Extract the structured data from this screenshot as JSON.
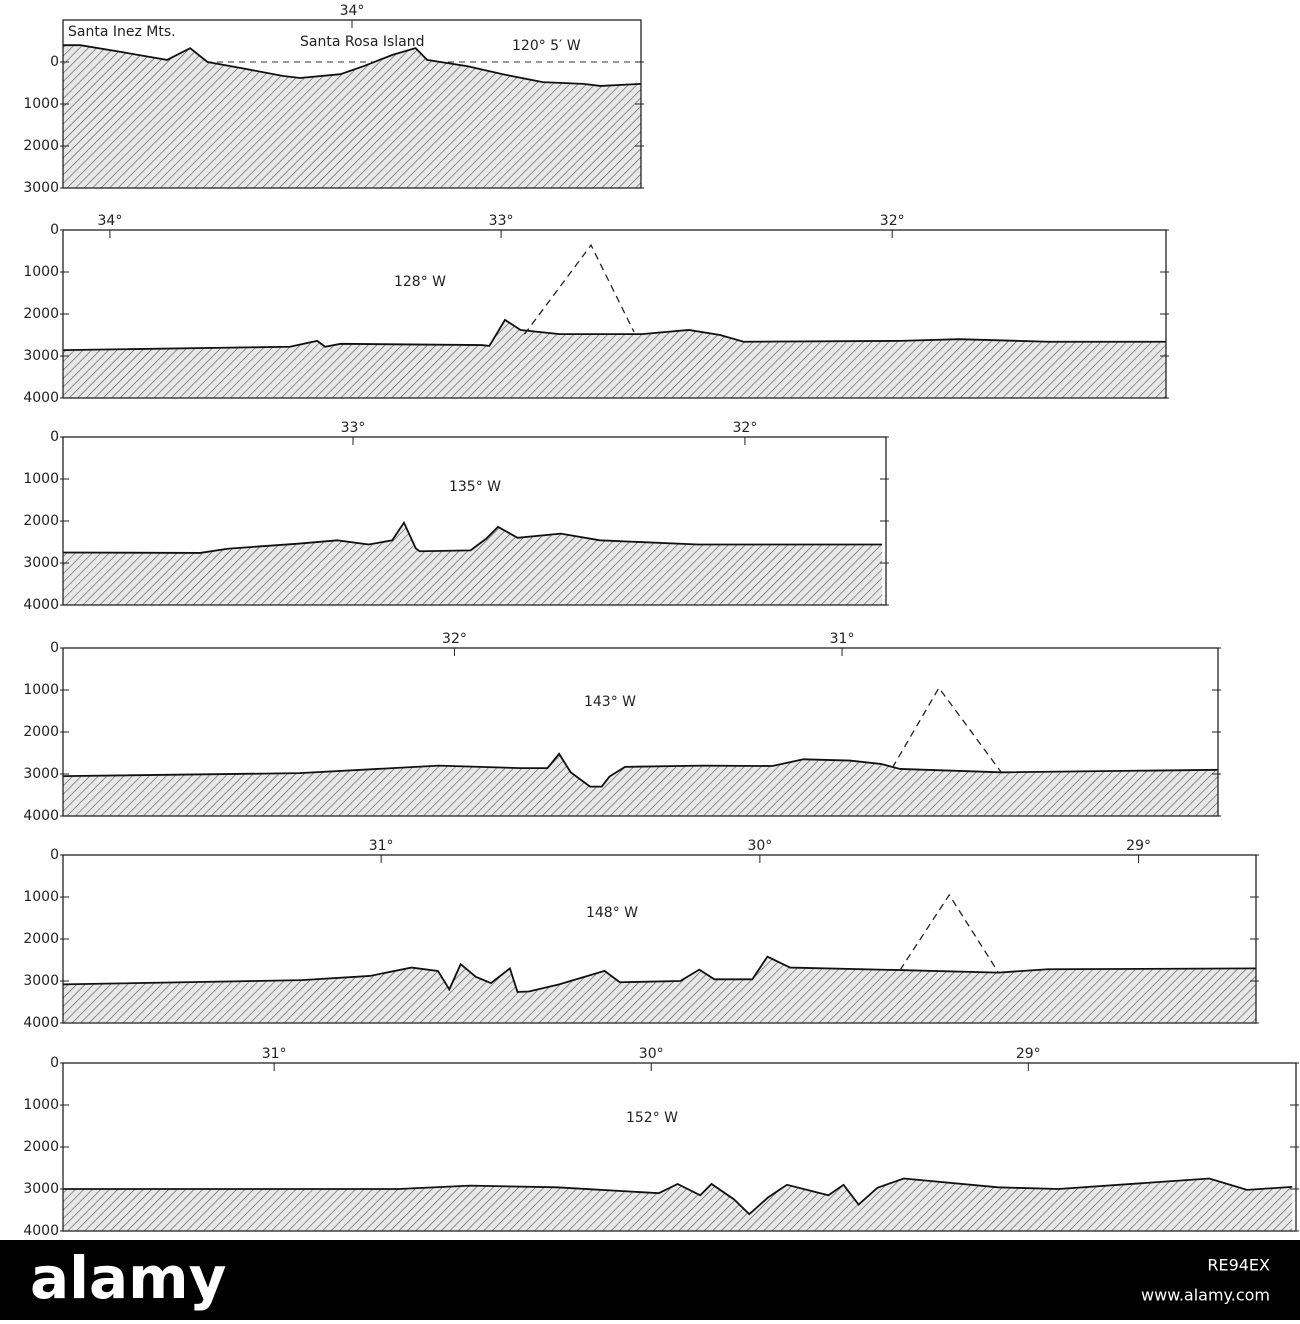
{
  "chart_data": [
    {
      "type": "area",
      "y_inverted": true,
      "zero_line": true,
      "annotations": [
        "Santa Inez Mts.",
        "Santa Rosa Island",
        "120° 5′ W"
      ],
      "xlim": [
        34.5,
        33.5
      ],
      "xticks": [
        {
          "value": 34,
          "label": "34°"
        }
      ],
      "ylim": [
        -1000,
        3000
      ],
      "yticks": [
        0,
        1000,
        2000,
        3000
      ],
      "x": [
        34.5,
        34.47,
        34.4,
        34.32,
        34.28,
        34.25,
        34.19,
        34.12,
        34.09,
        34.02,
        33.98,
        33.93,
        33.89,
        33.87,
        33.8,
        33.74,
        33.67,
        33.6,
        33.57,
        33.5
      ],
      "values": [
        -400,
        -400,
        -240,
        -50,
        -330,
        0,
        150,
        330,
        380,
        290,
        100,
        -170,
        -330,
        -50,
        100,
        290,
        480,
        520,
        570,
        520
      ]
    },
    {
      "type": "area",
      "y_inverted": true,
      "annotations": [
        "128° W"
      ],
      "xlim": [
        34.12,
        31.3
      ],
      "xticks": [
        {
          "value": 34,
          "label": "34°"
        },
        {
          "value": 33,
          "label": "33°"
        },
        {
          "value": 32,
          "label": "32°"
        }
      ],
      "ylim": [
        0,
        4000
      ],
      "yticks": [
        0,
        1000,
        2000,
        3000,
        4000
      ],
      "x": [
        34.12,
        33.54,
        33.47,
        33.45,
        33.41,
        33.05,
        33.03,
        32.99,
        32.95,
        32.85,
        32.64,
        32.52,
        32.44,
        32.38,
        31.98,
        31.83,
        31.6,
        31.3
      ],
      "values": [
        2860,
        2780,
        2640,
        2780,
        2710,
        2740,
        2760,
        2140,
        2380,
        2480,
        2480,
        2380,
        2500,
        2660,
        2640,
        2600,
        2660,
        2660
      ],
      "dashed": {
        "x": [
          32.94,
          32.77,
          32.66
        ],
        "values": [
          2480,
          360,
          2430
        ]
      }
    },
    {
      "type": "area",
      "y_inverted": true,
      "annotations": [
        "135° W"
      ],
      "xlim": [
        33.74,
        31.64
      ],
      "xticks": [
        {
          "value": 33,
          "label": "33°"
        },
        {
          "value": 32,
          "label": "32°"
        }
      ],
      "ylim": [
        0,
        4000
      ],
      "yticks": [
        0,
        1000,
        2000,
        3000,
        4000
      ],
      "x": [
        33.74,
        33.39,
        33.32,
        33.14,
        33.04,
        32.96,
        32.9,
        32.87,
        32.84,
        32.83,
        32.7,
        32.66,
        32.63,
        32.58,
        32.47,
        32.37,
        32.12,
        31.65
      ],
      "values": [
        2750,
        2760,
        2660,
        2540,
        2460,
        2560,
        2460,
        2040,
        2650,
        2720,
        2700,
        2420,
        2140,
        2400,
        2300,
        2460,
        2560,
        2560
      ]
    },
    {
      "type": "area",
      "y_inverted": true,
      "annotations": [
        "143° W"
      ],
      "xlim": [
        33.01,
        30.03
      ],
      "xticks": [
        {
          "value": 32,
          "label": "32°"
        },
        {
          "value": 31,
          "label": "31°"
        }
      ],
      "ylim": [
        0,
        4000
      ],
      "yticks": [
        0,
        1000,
        2000,
        3000,
        4000
      ],
      "x": [
        33.01,
        32.4,
        32.04,
        31.83,
        31.76,
        31.73,
        31.7,
        31.65,
        31.62,
        31.6,
        31.56,
        31.36,
        31.18,
        31.1,
        30.98,
        30.9,
        30.85,
        30.59,
        30.03
      ],
      "values": [
        3050,
        2980,
        2800,
        2860,
        2860,
        2520,
        2960,
        3300,
        3300,
        3060,
        2830,
        2800,
        2810,
        2650,
        2680,
        2760,
        2880,
        2960,
        2900
      ],
      "dashed": {
        "x": [
          30.87,
          30.75,
          30.59
        ],
        "values": [
          2850,
          950,
          2950
        ]
      }
    },
    {
      "type": "area",
      "y_inverted": true,
      "annotations": [
        "148° W"
      ],
      "xlim": [
        31.84,
        28.69
      ],
      "xticks": [
        {
          "value": 31,
          "label": "31°"
        },
        {
          "value": 30,
          "label": "30°"
        },
        {
          "value": 29,
          "label": "29°"
        }
      ],
      "ylim": [
        0,
        4000
      ],
      "yticks": [
        0,
        1000,
        2000,
        3000,
        4000
      ],
      "x": [
        31.84,
        31.21,
        31.03,
        30.92,
        30.85,
        30.82,
        30.79,
        30.75,
        30.71,
        30.66,
        30.64,
        30.61,
        30.53,
        30.41,
        30.37,
        30.21,
        30.16,
        30.12,
        30.02,
        29.98,
        29.92,
        29.63,
        29.37,
        29.24,
        28.69
      ],
      "values": [
        3080,
        2980,
        2880,
        2680,
        2760,
        3200,
        2600,
        2900,
        3050,
        2700,
        3260,
        3250,
        3080,
        2760,
        3030,
        3000,
        2730,
        2960,
        2960,
        2420,
        2680,
        2740,
        2800,
        2720,
        2700
      ],
      "dashed": {
        "x": [
          29.63,
          29.5,
          29.37
        ],
        "values": [
          2740,
          950,
          2800
        ]
      }
    },
    {
      "type": "area",
      "y_inverted": true,
      "annotations": [
        "152° W"
      ],
      "xlim": [
        31.56,
        28.29
      ],
      "xticks": [
        {
          "value": 31,
          "label": "31°"
        },
        {
          "value": 30,
          "label": "30°"
        },
        {
          "value": 29,
          "label": "29°"
        }
      ],
      "ylim": [
        0,
        4000
      ],
      "yticks": [
        0,
        1000,
        2000,
        3000,
        4000
      ],
      "x": [
        31.56,
        30.67,
        30.48,
        30.25,
        29.98,
        29.93,
        29.87,
        29.84,
        29.78,
        29.74,
        29.69,
        29.64,
        29.53,
        29.49,
        29.45,
        29.4,
        29.33,
        29.08,
        28.92,
        28.52,
        28.42,
        28.3
      ],
      "values": [
        3000,
        3000,
        2920,
        2960,
        3100,
        2880,
        3150,
        2880,
        3250,
        3600,
        3200,
        2900,
        3150,
        2900,
        3370,
        2970,
        2750,
        2960,
        3000,
        2750,
        3020,
        2950
      ]
    }
  ],
  "footer": {
    "brand": "alamy",
    "image_id": "RE94EX",
    "url": "www.alamy.com"
  }
}
